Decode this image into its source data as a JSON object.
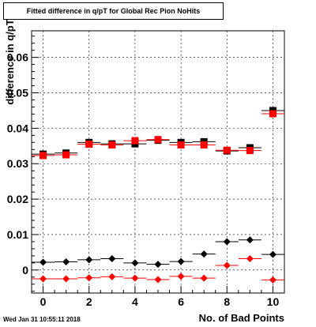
{
  "chart_data": {
    "type": "scatter",
    "title": "Fitted difference in q/pT for Global Rec Pion NoHits",
    "xlabel": "No. of Bad Points",
    "ylabel": "difference in q/pT",
    "xlim": [
      -0.5,
      10.5
    ],
    "ylim": [
      -0.0065,
      0.0675
    ],
    "xticks": [
      "0",
      "2",
      "4",
      "6",
      "8",
      "10"
    ],
    "yticks": [
      "0",
      "0.01",
      "0.02",
      "0.03",
      "0.04",
      "0.05",
      "0.06"
    ],
    "grid": true,
    "series": [
      {
        "marker": "square",
        "color": "#000000",
        "x": [
          0,
          1,
          2,
          3,
          4,
          5,
          6,
          7,
          8,
          9,
          10
        ],
        "y": [
          0.0327,
          0.033,
          0.036,
          0.0356,
          0.0356,
          0.0366,
          0.036,
          0.0362,
          0.0336,
          0.0345,
          0.045
        ]
      },
      {
        "marker": "square",
        "color": "#ff0000",
        "x": [
          0,
          1,
          2,
          3,
          4,
          5,
          6,
          7,
          8,
          9,
          10
        ],
        "y": [
          0.0323,
          0.0325,
          0.0355,
          0.0353,
          0.0365,
          0.0368,
          0.0353,
          0.0353,
          0.0338,
          0.0337,
          0.0441
        ]
      },
      {
        "marker": "diamond",
        "color": "#000000",
        "x": [
          0,
          1,
          2,
          3,
          4,
          5,
          6,
          7,
          8,
          9,
          10
        ],
        "y": [
          0.0022,
          0.0023,
          0.0029,
          0.0032,
          0.002,
          0.0016,
          0.0024,
          0.0045,
          0.008,
          0.0085,
          0.0044
        ]
      },
      {
        "marker": "diamond",
        "color": "#ff0000",
        "x": [
          0,
          1,
          2,
          3,
          4,
          5,
          6,
          7,
          8,
          9,
          10
        ],
        "y": [
          -0.0025,
          -0.0025,
          -0.0022,
          -0.0019,
          -0.0023,
          -0.0027,
          -0.0018,
          -0.0023,
          0.0013,
          0.0032,
          -0.0028
        ]
      }
    ]
  },
  "footer": {
    "timestamp": "Wed Jan 31 10:55:11 2018"
  }
}
